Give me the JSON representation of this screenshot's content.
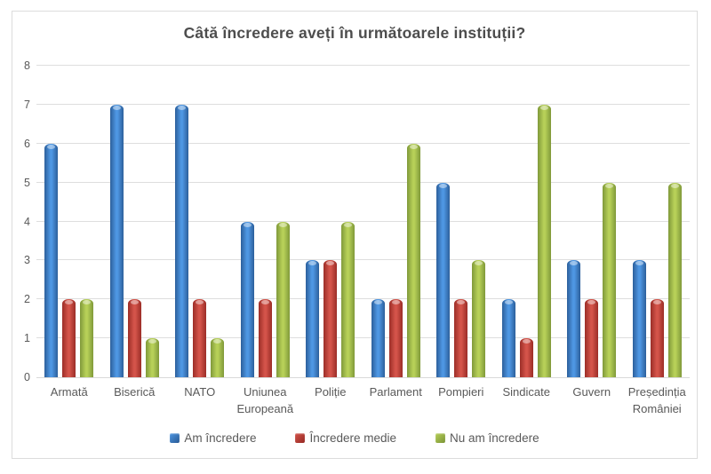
{
  "title": "Câtă încredere aveți în următoarele instituții?",
  "chart_data": {
    "type": "bar",
    "title": "Câtă încredere aveți în următoarele instituții?",
    "categories": [
      "Armată",
      "Biserică",
      "NATO",
      "Uniunea Europeană",
      "Poliție",
      "Parlament",
      "Pompieri",
      "Sindicate",
      "Guvern",
      "Președinția României"
    ],
    "series": [
      {
        "name": "Am încredere",
        "color": {
          "edge": "#2c5f9b",
          "center": "#4e97e3"
        },
        "values": [
          6,
          7,
          7,
          4,
          3,
          2,
          5,
          2,
          3,
          3
        ]
      },
      {
        "name": "Încredere medie",
        "color": {
          "edge": "#9b2d27",
          "center": "#d4544a"
        },
        "values": [
          2,
          2,
          2,
          2,
          3,
          2,
          2,
          1,
          2,
          2
        ]
      },
      {
        "name": "Nu am încredere",
        "color": {
          "edge": "#80993a",
          "center": "#b7d058"
        },
        "values": [
          2,
          1,
          1,
          4,
          4,
          6,
          3,
          7,
          5,
          5
        ]
      }
    ],
    "xlabel": "",
    "ylabel": "",
    "ylim": [
      0,
      8
    ],
    "yticks": [
      0,
      1,
      2,
      3,
      4,
      5,
      6,
      7,
      8
    ],
    "grid": true,
    "legend_position": "bottom"
  }
}
